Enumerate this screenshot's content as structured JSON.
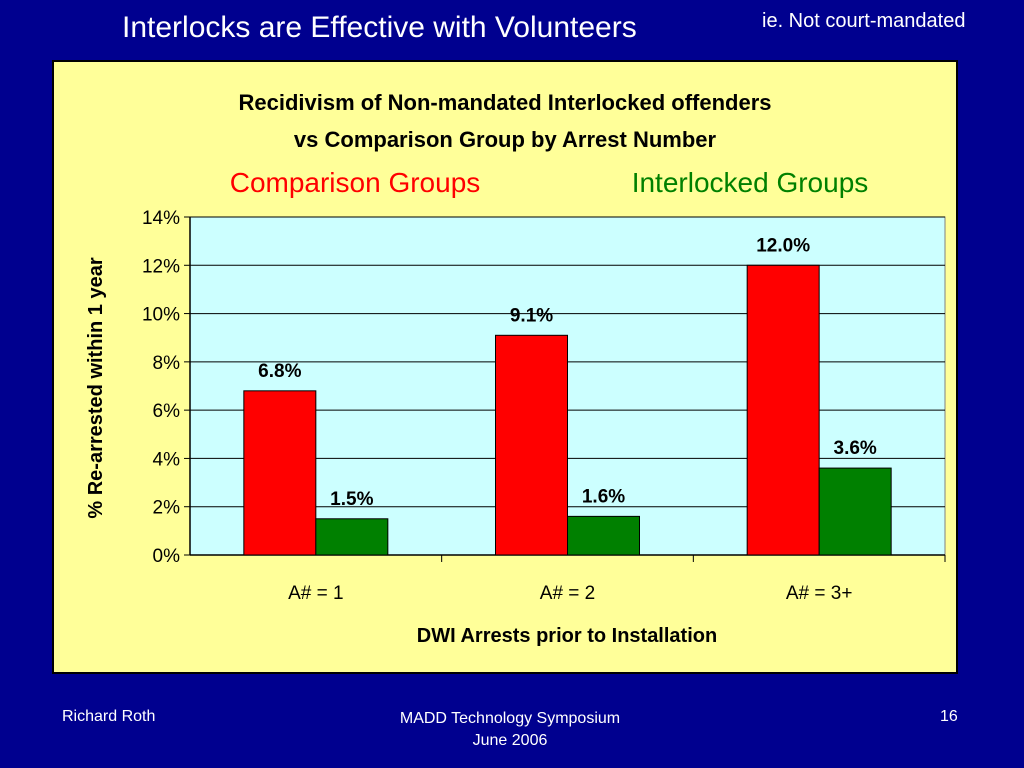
{
  "slide": {
    "title": "Interlocks are Effective with Volunteers",
    "note": "ie. Not court-mandated"
  },
  "footer": {
    "author": "Richard Roth",
    "event": "MADD Technology Symposium",
    "date": "June 2006",
    "page": "16"
  },
  "colors": {
    "background": "#00008f",
    "panel": "#ffff99",
    "plot": "#ccffff",
    "comparison": "#ff0000",
    "interlocked": "#008000"
  },
  "chart_data": {
    "type": "bar",
    "title": "Recidivism of Non-mandated Interlocked offenders",
    "subtitle": "vs Comparison Group by Arrest Number",
    "xlabel": "DWI Arrests prior to Installation",
    "ylabel": "% Re-arrested within 1 year",
    "ylim": [
      0,
      14
    ],
    "ytick_labels": [
      "0%",
      "2%",
      "4%",
      "6%",
      "8%",
      "10%",
      "12%",
      "14%"
    ],
    "categories": [
      "A# = 1",
      "A# = 2",
      "A# = 3+"
    ],
    "series": [
      {
        "name": "Comparison Groups",
        "color": "#ff0000",
        "values": [
          6.8,
          9.1,
          12.0
        ],
        "labels": [
          "6.8%",
          "9.1%",
          "12.0%"
        ]
      },
      {
        "name": "Interlocked Groups",
        "color": "#008000",
        "values": [
          1.5,
          1.6,
          3.6
        ],
        "labels": [
          "1.5%",
          "1.6%",
          "3.6%"
        ]
      }
    ],
    "grid": true,
    "legend": "top"
  }
}
